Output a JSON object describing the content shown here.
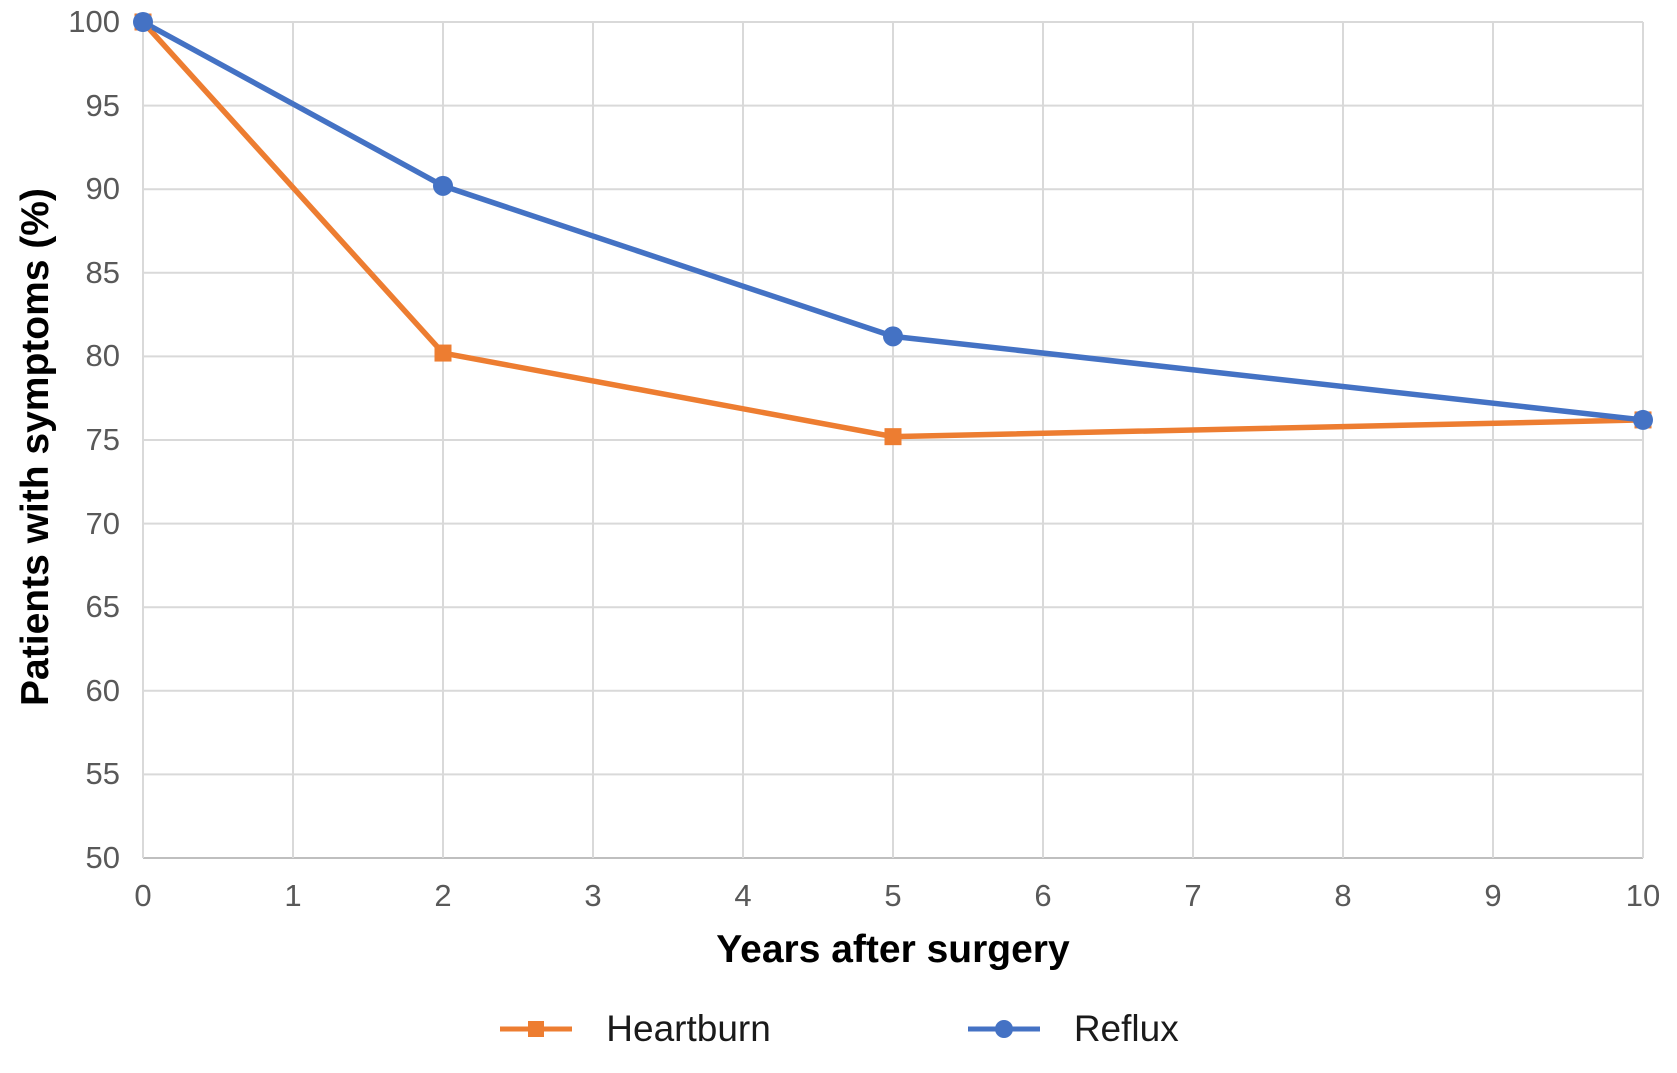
{
  "chart_data": {
    "type": "line",
    "x": [
      0,
      2,
      5,
      10
    ],
    "series": [
      {
        "name": "Heartburn",
        "color": "#ED7D31",
        "marker": "square",
        "values": [
          100,
          80.2,
          75.2,
          76.2
        ]
      },
      {
        "name": "Reflux",
        "color": "#4472C4",
        "marker": "circle",
        "values": [
          100,
          90.2,
          81.2,
          76.2
        ]
      }
    ],
    "xlabel": "Years after surgery",
    "ylabel": "Patients with symptoms (%)",
    "xlim": [
      0,
      10
    ],
    "ylim": [
      50,
      100
    ],
    "xticks": [
      0,
      1,
      2,
      3,
      4,
      5,
      6,
      7,
      8,
      9,
      10
    ],
    "yticks": [
      50,
      55,
      60,
      65,
      70,
      75,
      80,
      85,
      90,
      95,
      100
    ],
    "grid": true,
    "legend_position": "bottom",
    "colors": {
      "gridline": "#D9D9D9",
      "axis_line": "#BFBFBF",
      "tick_label": "#595959",
      "axis_title": "#000000",
      "background": "#FFFFFF"
    }
  }
}
